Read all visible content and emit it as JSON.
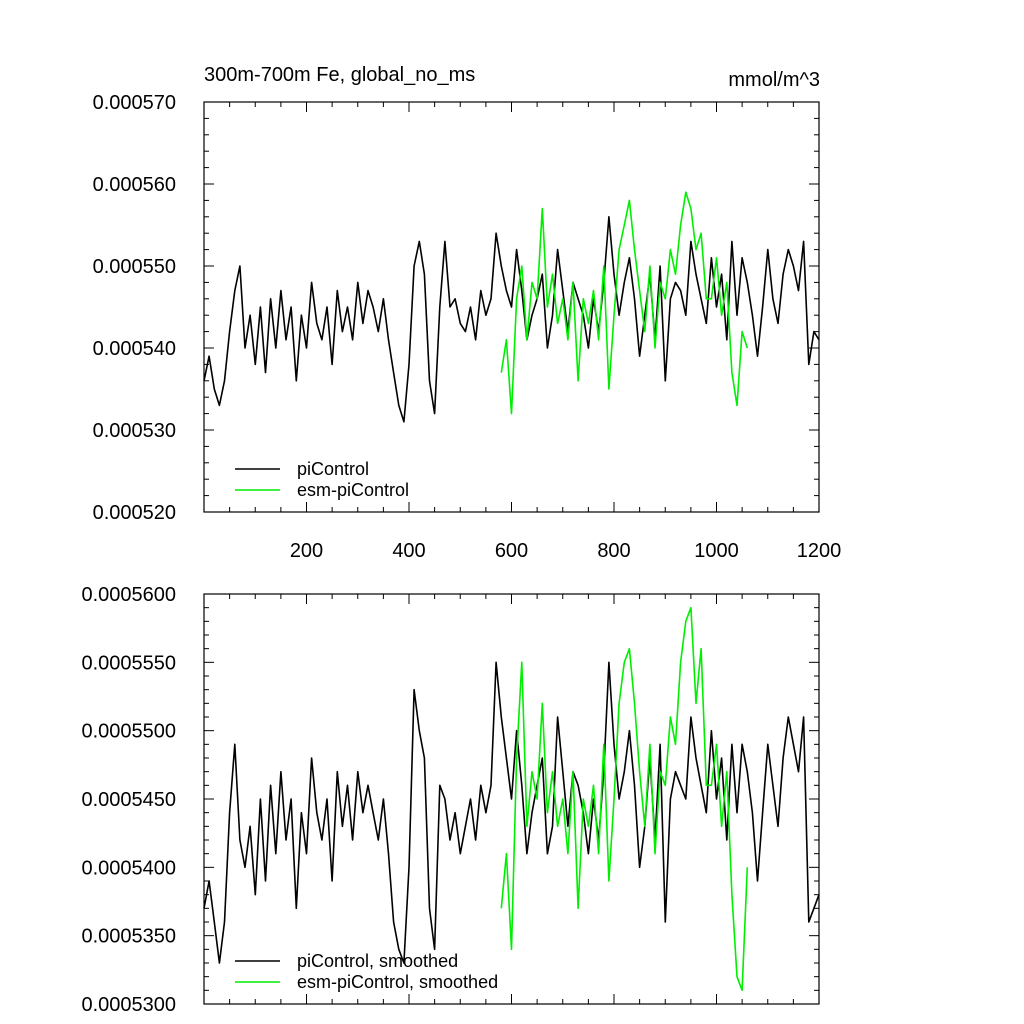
{
  "chart_data": [
    {
      "type": "line",
      "title": "300m-700m Fe, global_no_ms",
      "units": "mmol/m^3",
      "xlim": [
        0,
        1200
      ],
      "ylim": [
        0.00052,
        0.00057
      ],
      "x_ticks": [
        200,
        400,
        600,
        800,
        1000,
        1200
      ],
      "x_tick_labels": [
        "200",
        "400",
        "600",
        "800",
        "1000",
        "1200"
      ],
      "y_ticks": [
        0.00052,
        0.00053,
        0.00054,
        0.00055,
        0.00056,
        0.00057
      ],
      "y_tick_labels": [
        "0.000520",
        "0.000530",
        "0.000540",
        "0.000550",
        "0.000560",
        "0.000570"
      ],
      "legend": [
        "piControl",
        "esm-piControl"
      ],
      "series": [
        {
          "name": "piControl",
          "color": "#000000",
          "x_start": 0,
          "x_step": 10,
          "values": [
            0.000536,
            0.000539,
            0.000535,
            0.000533,
            0.000536,
            0.000542,
            0.000547,
            0.00055,
            0.00054,
            0.000544,
            0.000538,
            0.000545,
            0.000537,
            0.000546,
            0.00054,
            0.000547,
            0.000541,
            0.000545,
            0.000536,
            0.000544,
            0.00054,
            0.000548,
            0.000543,
            0.000541,
            0.000545,
            0.000538,
            0.000547,
            0.000542,
            0.000545,
            0.000541,
            0.000548,
            0.000543,
            0.000547,
            0.000545,
            0.000542,
            0.000546,
            0.000541,
            0.000537,
            0.000533,
            0.000531,
            0.000538,
            0.00055,
            0.000553,
            0.000549,
            0.000536,
            0.000532,
            0.000545,
            0.000553,
            0.000545,
            0.000546,
            0.000543,
            0.000542,
            0.000545,
            0.000541,
            0.000547,
            0.000544,
            0.000546,
            0.000554,
            0.00055,
            0.000547,
            0.000545,
            0.000552,
            0.000547,
            0.000541,
            0.000544,
            0.000546,
            0.000549,
            0.00054,
            0.000544,
            0.000552,
            0.000547,
            0.000542,
            0.000548,
            0.000546,
            0.000544,
            0.00054,
            0.000546,
            0.000542,
            0.000548,
            0.000556,
            0.000549,
            0.000544,
            0.000548,
            0.000551,
            0.000546,
            0.000539,
            0.000544,
            0.000549,
            0.000541,
            0.00055,
            0.000536,
            0.000546,
            0.000548,
            0.000547,
            0.000544,
            0.000553,
            0.000549,
            0.000546,
            0.000543,
            0.000551,
            0.000545,
            0.000549,
            0.000541,
            0.000553,
            0.000544,
            0.000551,
            0.000548,
            0.000544,
            0.000539,
            0.000545,
            0.000552,
            0.000546,
            0.000543,
            0.000549,
            0.000552,
            0.00055,
            0.000547,
            0.000553,
            0.000538,
            0.000542,
            0.000541
          ]
        },
        {
          "name": "esm-piControl",
          "color": "#00ee00",
          "x_start": 580,
          "x_step": 10,
          "values": [
            0.000537,
            0.000541,
            0.000532,
            0.000546,
            0.00055,
            0.000541,
            0.000548,
            0.000546,
            0.000557,
            0.000545,
            0.000549,
            0.000543,
            0.000546,
            0.000541,
            0.000548,
            0.000536,
            0.000546,
            0.000543,
            0.000547,
            0.000541,
            0.00055,
            0.000535,
            0.000544,
            0.000552,
            0.000555,
            0.000558,
            0.000552,
            0.000547,
            0.000542,
            0.00055,
            0.00054,
            0.000548,
            0.000546,
            0.000552,
            0.000549,
            0.000555,
            0.000559,
            0.000557,
            0.000552,
            0.000554,
            0.000546,
            0.000546,
            0.000551,
            0.000544,
            0.000548,
            0.000537,
            0.000533,
            0.000542,
            0.00054
          ]
        }
      ]
    },
    {
      "type": "line",
      "xlim": [
        0,
        1200
      ],
      "ylim": [
        0.00053,
        0.00056
      ],
      "x_ticks": [
        200,
        400,
        600,
        800,
        1000,
        1200
      ],
      "y_ticks": [
        0.00053,
        0.000535,
        0.00054,
        0.000545,
        0.00055,
        0.000555,
        0.00056
      ],
      "y_tick_labels": [
        "0.0005300",
        "0.0005350",
        "0.0005400",
        "0.0005450",
        "0.0005500",
        "0.0005550",
        "0.0005600"
      ],
      "legend": [
        "piControl, smoothed",
        "esm-piControl, smoothed"
      ],
      "series": [
        {
          "name": "piControl, smoothed",
          "color": "#000000",
          "x_start": 0,
          "x_step": 10,
          "values": [
            0.000537,
            0.000539,
            0.000536,
            0.000533,
            0.000536,
            0.000544,
            0.000549,
            0.000542,
            0.00054,
            0.000543,
            0.000538,
            0.000545,
            0.000539,
            0.000546,
            0.000541,
            0.000547,
            0.000542,
            0.000545,
            0.000537,
            0.000544,
            0.000541,
            0.000548,
            0.000544,
            0.000542,
            0.000545,
            0.000539,
            0.000547,
            0.000543,
            0.000546,
            0.000542,
            0.000547,
            0.000544,
            0.000546,
            0.000544,
            0.000542,
            0.000545,
            0.000541,
            0.000536,
            0.000534,
            0.000533,
            0.00054,
            0.000553,
            0.00055,
            0.000548,
            0.000537,
            0.000534,
            0.000546,
            0.000545,
            0.000542,
            0.000544,
            0.000541,
            0.000543,
            0.000545,
            0.000542,
            0.000546,
            0.000544,
            0.000546,
            0.000555,
            0.000551,
            0.000548,
            0.000545,
            0.00055,
            0.000546,
            0.000541,
            0.000544,
            0.000546,
            0.000548,
            0.000541,
            0.000543,
            0.000551,
            0.000547,
            0.000543,
            0.000547,
            0.000546,
            0.000544,
            0.000541,
            0.000545,
            0.000542,
            0.000547,
            0.000555,
            0.000549,
            0.000545,
            0.000547,
            0.00055,
            0.000546,
            0.00054,
            0.000543,
            0.000548,
            0.000542,
            0.000549,
            0.000536,
            0.000545,
            0.000547,
            0.000546,
            0.000545,
            0.000551,
            0.000548,
            0.000546,
            0.000544,
            0.00055,
            0.000545,
            0.000548,
            0.000542,
            0.000549,
            0.000544,
            0.000549,
            0.000547,
            0.000544,
            0.000539,
            0.000544,
            0.000549,
            0.000546,
            0.000543,
            0.000548,
            0.000551,
            0.000549,
            0.000547,
            0.000551,
            0.000536,
            0.000537,
            0.000538
          ]
        },
        {
          "name": "esm-piControl, smoothed",
          "color": "#00ee00",
          "x_start": 580,
          "x_step": 10,
          "values": [
            0.000537,
            0.000541,
            0.000534,
            0.000548,
            0.000555,
            0.000543,
            0.000547,
            0.000545,
            0.000552,
            0.000544,
            0.000547,
            0.000543,
            0.000545,
            0.000541,
            0.000547,
            0.000537,
            0.000545,
            0.000543,
            0.000546,
            0.000541,
            0.000549,
            0.000539,
            0.000545,
            0.000552,
            0.000555,
            0.000556,
            0.000552,
            0.000547,
            0.000543,
            0.000549,
            0.000541,
            0.000547,
            0.000546,
            0.000551,
            0.000549,
            0.000555,
            0.000558,
            0.000559,
            0.000552,
            0.000556,
            0.000546,
            0.000546,
            0.000549,
            0.000543,
            0.000547,
            0.000538,
            0.000532,
            0.000531,
            0.00054
          ]
        }
      ]
    }
  ]
}
